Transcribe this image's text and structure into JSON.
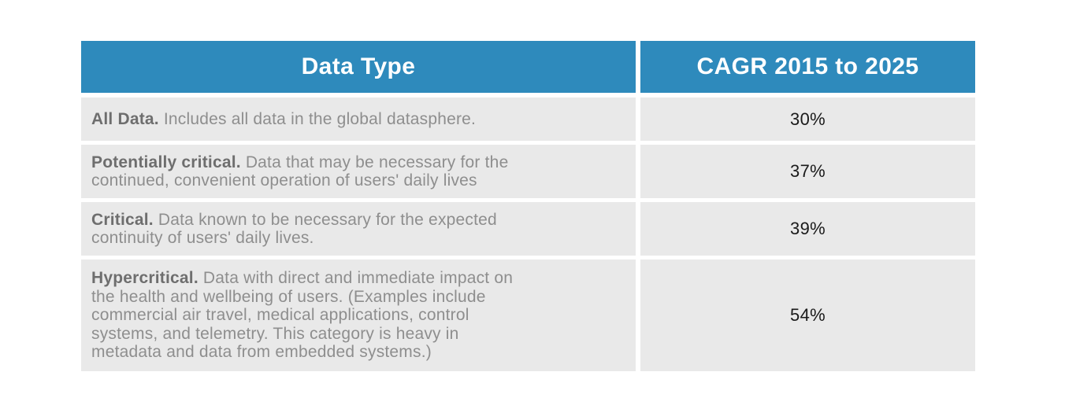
{
  "table": {
    "header": {
      "col1": "Data Type",
      "col2": "CAGR 2015 to 2025"
    },
    "rows": [
      {
        "lead": "All Data.",
        "desc": "Includes all data in the global datasphere.",
        "cagr": "30%"
      },
      {
        "lead": "Potentially critical.",
        "desc": "Data that may be necessary for the\ncontinued, convenient operation of users' daily lives",
        "cagr": "37%"
      },
      {
        "lead": "Critical.",
        "desc": "Data known to be necessary for the expected\ncontinuity of users' daily lives.",
        "cagr": "39%"
      },
      {
        "lead": "Hypercritical.",
        "desc": "Data with direct and immediate impact on\nthe health and wellbeing of users. (Examples include\ncommercial air travel, medical applications, control\nsystems, and telemetry. This category is heavy in\nmetadata and data from embedded systems.)",
        "cagr": "54%"
      }
    ]
  },
  "colors": {
    "header_bg": "#2E8ABC",
    "header_text": "#FFFFFF",
    "row_bg": "#E9E9E9",
    "lead_text": "#6E6E6E",
    "desc_text": "#8E8E8E",
    "value_text": "#1A1A1A",
    "page_bg": "#FFFFFF"
  },
  "chart_data": {
    "type": "table",
    "title": "",
    "columns": [
      "Data Type",
      "CAGR 2015 to 2025"
    ],
    "rows": [
      [
        "All Data. Includes all data in the global datasphere.",
        "30%"
      ],
      [
        "Potentially critical. Data that may be necessary for the continued, convenient operation of users' daily lives",
        "37%"
      ],
      [
        "Critical. Data known to be necessary for the expected continuity of users' daily lives.",
        "39%"
      ],
      [
        "Hypercritical. Data with direct and immediate impact on the health and wellbeing of users. (Examples include commercial air travel, medical applications, control systems, and telemetry. This category is heavy in metadata and data from embedded systems.)",
        "54%"
      ]
    ],
    "values": [
      30,
      37,
      39,
      54
    ],
    "value_unit": "%",
    "categories": [
      "All Data",
      "Potentially critical",
      "Critical",
      "Hypercritical"
    ]
  }
}
